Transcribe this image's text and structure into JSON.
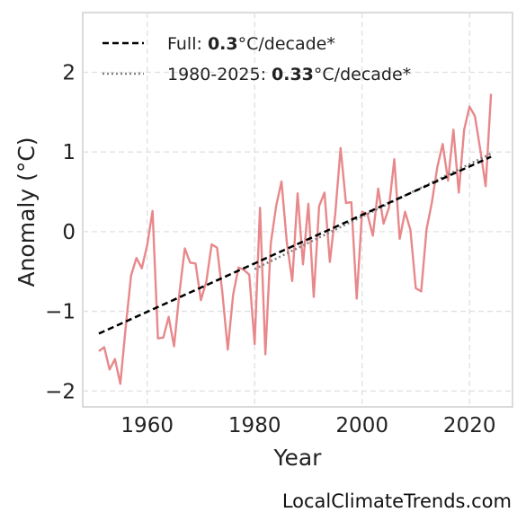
{
  "chart_data": {
    "type": "line",
    "xlabel": "Year",
    "ylabel": "Anomaly (°C)",
    "xlim": [
      1948,
      2028
    ],
    "ylim": [
      -2.2,
      2.75
    ],
    "xticks": [
      1960,
      1980,
      2000,
      2020
    ],
    "yticks": [
      -2,
      -1,
      0,
      1,
      2
    ],
    "ytick_labels": [
      "−2",
      "−1",
      "0",
      "1",
      "2"
    ],
    "grid": true,
    "legend_position": "top-left",
    "series": [
      {
        "color": "#e8888b",
        "x": [
          1951,
          1952,
          1953,
          1954,
          1955,
          1956,
          1957,
          1958,
          1959,
          1960,
          1961,
          1962,
          1963,
          1964,
          1965,
          1966,
          1967,
          1968,
          1969,
          1970,
          1971,
          1972,
          1973,
          1974,
          1975,
          1976,
          1977,
          1978,
          1979,
          1980,
          1981,
          1982,
          1983,
          1984,
          1985,
          1986,
          1987,
          1988,
          1989,
          1990,
          1991,
          1992,
          1993,
          1994,
          1995,
          1996,
          1997,
          1998,
          1999,
          2000,
          2001,
          2002,
          2003,
          2004,
          2005,
          2006,
          2007,
          2008,
          2009,
          2010,
          2011,
          2012,
          2013,
          2014,
          2015,
          2016,
          2017,
          2018,
          2019,
          2020,
          2021,
          2022,
          2023,
          2024
        ],
        "y": [
          -1.5,
          -1.45,
          -1.73,
          -1.6,
          -1.91,
          -1.2,
          -0.55,
          -0.33,
          -0.46,
          -0.17,
          0.26,
          -1.34,
          -1.33,
          -1.07,
          -1.44,
          -0.77,
          -0.21,
          -0.39,
          -0.4,
          -0.86,
          -0.63,
          -0.16,
          -0.2,
          -0.77,
          -1.48,
          -0.79,
          -0.45,
          -0.48,
          -0.54,
          -1.41,
          0.3,
          -1.54,
          -0.15,
          0.32,
          0.63,
          -0.14,
          -0.62,
          0.48,
          -0.41,
          0.35,
          -0.82,
          0.32,
          0.49,
          -0.38,
          0.22,
          1.05,
          0.36,
          0.37,
          -0.84,
          0.25,
          0.22,
          -0.05,
          0.54,
          0.1,
          0.3,
          0.91,
          -0.09,
          0.25,
          0.02,
          -0.71,
          -0.75,
          0.03,
          0.37,
          0.81,
          1.1,
          0.64,
          1.28,
          0.49,
          1.28,
          1.57,
          1.45,
          1.03,
          0.57,
          1.73
        ]
      },
      {
        "name": "Full: ",
        "rate": "0.3",
        "unit": "°C/decade*",
        "color": "#000000",
        "dash": "dashed",
        "x": [
          1951,
          2024
        ],
        "y": [
          -1.28,
          0.94
        ]
      },
      {
        "name": "1980-2025: ",
        "rate": "0.33",
        "unit": "°C/decade*",
        "color": "#808080",
        "dash": "dotted",
        "x": [
          1980,
          2024
        ],
        "y": [
          -0.47,
          0.98
        ]
      }
    ]
  },
  "watermark": "LocalClimateTrends.com"
}
